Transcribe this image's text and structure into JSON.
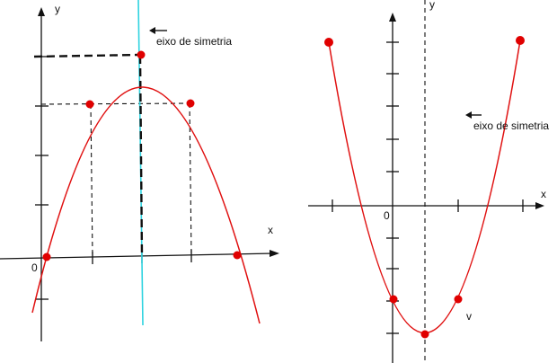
{
  "left_graph": {
    "axis_y_label": "y",
    "axis_x_label": "x",
    "origin_label": "0",
    "symmetry_label": "eixo de simetria",
    "symmetry_axis_color": "#2fd3e0",
    "curve_color": "#e01010",
    "point_color": "#e00000"
  },
  "right_graph": {
    "axis_y_label": "y",
    "axis_x_label": "x",
    "origin_label": "0",
    "symmetry_label": "eixo de simetria",
    "vertex_label": "v",
    "curve_color": "#e01010",
    "point_color": "#e00000"
  }
}
